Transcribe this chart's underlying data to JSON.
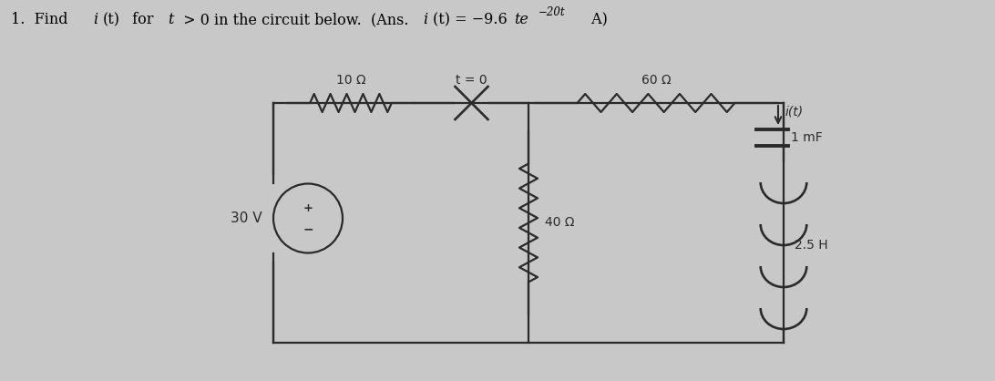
{
  "bg_color": "#c8c8c8",
  "circuit_color": "#2a2a2a",
  "label_10R": "10 Ω",
  "label_t0": "t = 0",
  "label_60R": "60 Ω",
  "label_40R": "40 Ω",
  "label_30V": "30 V",
  "label_1mF": "1 mF",
  "label_25H": "2.5 H",
  "label_it": "i(t)",
  "TLx": 3.0,
  "TLy": 3.05,
  "TRx": 8.6,
  "TRy": 3.05,
  "BLx": 3.0,
  "BLy": 0.42,
  "BRx": 8.6,
  "BRy": 0.42,
  "MTx": 5.8,
  "MTy": 3.05,
  "MBx": 5.8,
  "MBy": 0.42
}
